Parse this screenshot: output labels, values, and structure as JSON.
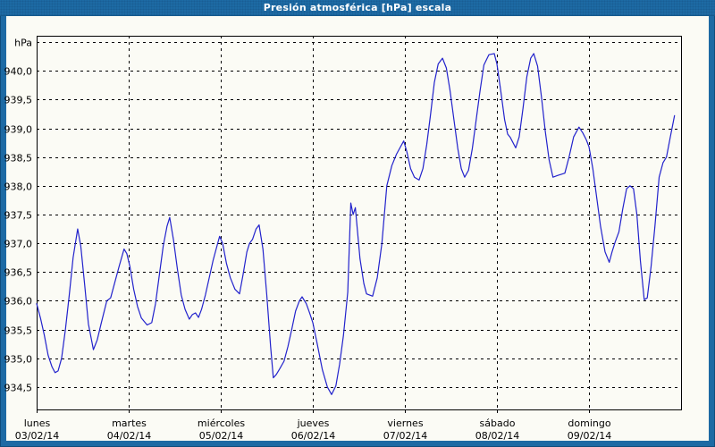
{
  "window": {
    "title": "Presión atmosférica [hPa] escala"
  },
  "colors": {
    "frame": "#1d6aa4",
    "frame_dark": "#0f4c7c",
    "title_text": "#ffffff",
    "content_bg": "#fbfbf5",
    "plot_border": "#000000",
    "grid": "#000000",
    "line": "#2222cc",
    "label_text": "#000000"
  },
  "chart_data": {
    "type": "line",
    "title": "Presión atmosférica [hPa] escala",
    "xlabel": "",
    "ylabel": "hPa",
    "decimal_style": "comma",
    "grid": true,
    "legend": "none",
    "xlim": [
      0,
      168
    ],
    "ylim": [
      934.11,
      940.61
    ],
    "y_ticks": [
      {
        "label": "hPa",
        "value": 940.5
      },
      {
        "label": "940,0",
        "value": 940.0
      },
      {
        "label": "939,5",
        "value": 939.5
      },
      {
        "label": "939,0",
        "value": 939.0
      },
      {
        "label": "938,5",
        "value": 938.5
      },
      {
        "label": "938,0",
        "value": 938.0
      },
      {
        "label": "937,5",
        "value": 937.5
      },
      {
        "label": "937,0",
        "value": 937.0
      },
      {
        "label": "936,5",
        "value": 936.5
      },
      {
        "label": "936,0",
        "value": 936.0
      },
      {
        "label": "935,5",
        "value": 935.5
      },
      {
        "label": "935,0",
        "value": 935.0
      },
      {
        "label": "934,5",
        "value": 934.5
      }
    ],
    "x_ticks": [
      {
        "day": "lunes",
        "date": "03/02/14",
        "hour": 0
      },
      {
        "day": "martes",
        "date": "04/02/14",
        "hour": 24
      },
      {
        "day": "miércoles",
        "date": "05/02/14",
        "hour": 48
      },
      {
        "day": "jueves",
        "date": "06/02/14",
        "hour": 72
      },
      {
        "day": "viernes",
        "date": "07/02/14",
        "hour": 96
      },
      {
        "day": "sábado",
        "date": "08/02/14",
        "hour": 120
      },
      {
        "day": "domingo",
        "date": "09/02/14",
        "hour": 144
      }
    ],
    "series": [
      {
        "name": "Presión atmosférica [hPa]",
        "hours": [
          0,
          1,
          2,
          3,
          4,
          4.8,
          5.6,
          6.5,
          7.5,
          8.5,
          9.5,
          10.7,
          11.5,
          12.5,
          13.5,
          14.8,
          15.8,
          16.8,
          18.3,
          19.3,
          20.3,
          21.5,
          22.8,
          23.5,
          24.3,
          25.3,
          26.3,
          27.3,
          28.8,
          30,
          31,
          32,
          33,
          34,
          34.7,
          35.7,
          36.7,
          37.7,
          38.7,
          39.8,
          40.6,
          41.4,
          42.2,
          43,
          44,
          45,
          46,
          47,
          47.7,
          48.5,
          49.5,
          50.5,
          51.7,
          52.9,
          53.8,
          54.8,
          55.5,
          56.3,
          57.2,
          58,
          59,
          60,
          61,
          61.7,
          62.5,
          63.4,
          64.5,
          65.5,
          66.5,
          67.5,
          68.5,
          69.2,
          70.3,
          71.2,
          72,
          73,
          74.5,
          75.8,
          76.9,
          78,
          79,
          80,
          81.1,
          81.9,
          82.5,
          83.1,
          84.3,
          85.3,
          86,
          87.6,
          88.8,
          90,
          91.3,
          92.6,
          93.8,
          95.7,
          96.5,
          97.5,
          98.5,
          99.7,
          100.7,
          101.7,
          102.7,
          103.7,
          104.7,
          105.8,
          106.8,
          107.8,
          108.8,
          109.8,
          110.7,
          111.6,
          112.6,
          113.6,
          114.6,
          115.6,
          116.6,
          117.9,
          119.3,
          120,
          121,
          122,
          122.8,
          123.5,
          124.9,
          125.8,
          126.8,
          127.8,
          128.8,
          129.6,
          130.6,
          131.6,
          132.6,
          133.6,
          134.6,
          135.8,
          137.7,
          138.8,
          140,
          141.4,
          142.4,
          143.3,
          144,
          145,
          146,
          147,
          148.2,
          149.3,
          150,
          150.8,
          151.8,
          152.8,
          153.8,
          154.7,
          155.6,
          156.5,
          157.4,
          158.4,
          159.2,
          160.2,
          161.2,
          162.3,
          163.3,
          164.2,
          165.2,
          166.3
        ],
        "values": [
          935.95,
          935.7,
          935.4,
          935.05,
          934.85,
          934.75,
          934.78,
          935,
          935.5,
          936.1,
          936.75,
          937.25,
          936.95,
          936.3,
          935.6,
          935.15,
          935.32,
          935.6,
          936,
          936.05,
          936.3,
          936.6,
          936.9,
          936.82,
          936.6,
          936.2,
          935.9,
          935.7,
          935.58,
          935.62,
          935.95,
          936.45,
          936.95,
          937.3,
          937.45,
          937.05,
          936.55,
          936.1,
          935.85,
          935.68,
          935.76,
          935.79,
          935.71,
          935.85,
          936.1,
          936.4,
          936.7,
          936.95,
          937.12,
          937,
          936.65,
          936.4,
          936.2,
          936.12,
          936.45,
          936.85,
          937,
          937.07,
          937.25,
          937.32,
          936.9,
          936.1,
          935.2,
          934.66,
          934.72,
          934.82,
          934.95,
          935.2,
          935.5,
          935.82,
          936,
          936.07,
          935.95,
          935.78,
          935.62,
          935.3,
          934.8,
          934.5,
          934.37,
          934.52,
          934.9,
          935.4,
          936.15,
          937.7,
          937.5,
          937.62,
          936.73,
          936.3,
          936.12,
          936.08,
          936.4,
          937,
          938,
          938.35,
          938.55,
          938.78,
          938.6,
          938.3,
          938.15,
          938.1,
          938.3,
          938.72,
          939.25,
          939.8,
          940.12,
          940.22,
          940.05,
          939.65,
          939.15,
          938.65,
          938.3,
          938.15,
          938.27,
          938.65,
          939.15,
          939.65,
          940.1,
          940.28,
          940.3,
          940.12,
          939.65,
          939.15,
          938.9,
          938.84,
          938.66,
          938.85,
          939.35,
          939.9,
          940.22,
          940.3,
          940.08,
          939.55,
          938.95,
          938.45,
          938.15,
          938.18,
          938.22,
          938.5,
          938.85,
          939.02,
          938.92,
          938.8,
          938.68,
          938.3,
          937.8,
          937.3,
          936.85,
          936.67,
          936.85,
          937.02,
          937.2,
          937.6,
          937.95,
          938,
          937.95,
          937.5,
          936.7,
          936.02,
          936.05,
          936.6,
          937.3,
          938.15,
          938.4,
          938.5,
          938.85,
          939.22
        ]
      }
    ]
  }
}
